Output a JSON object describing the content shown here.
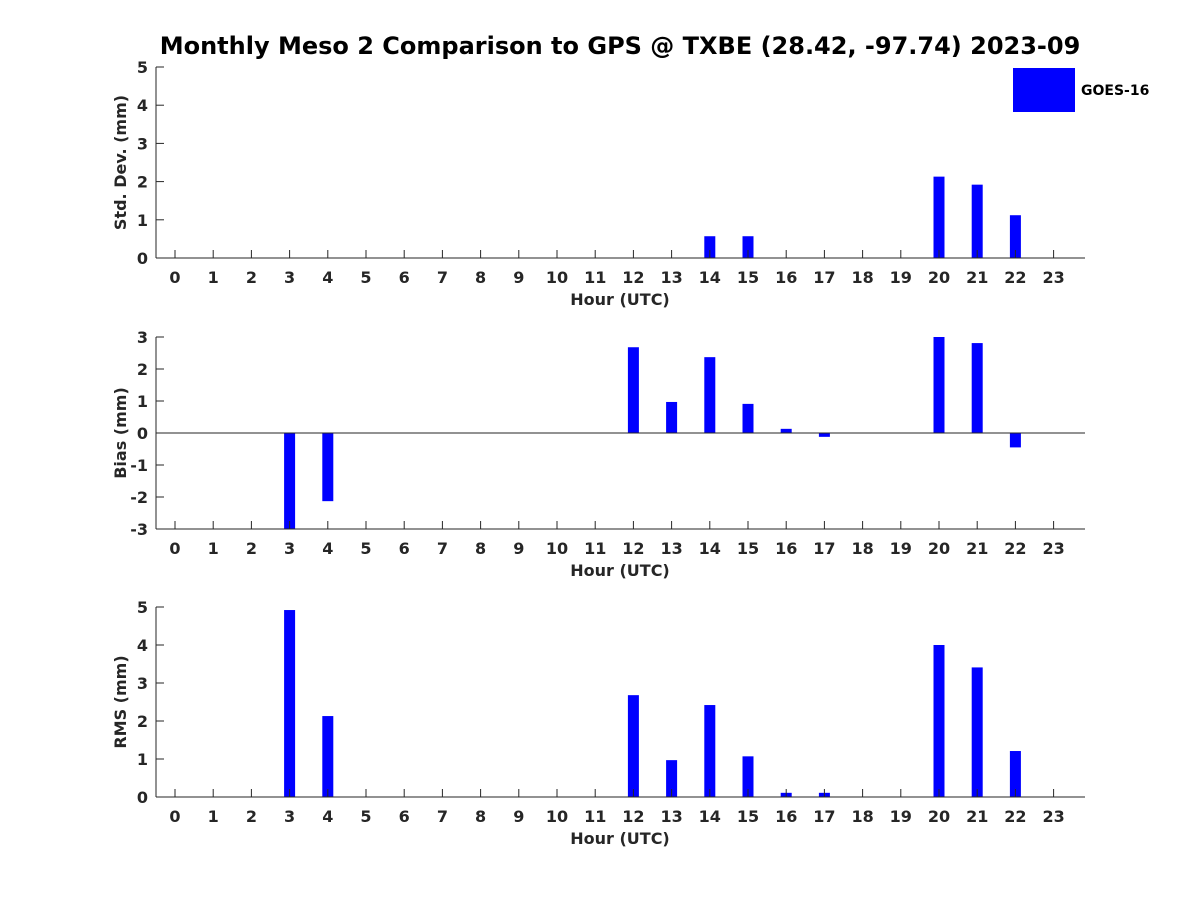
{
  "title": "Monthly Meso 2 Comparison to GPS @ TXBE (28.42, -97.74) 2023-09",
  "legend": {
    "label": "GOES-16",
    "color": "#0000ff"
  },
  "chart_data": [
    {
      "type": "bar",
      "xlabel": "Hour (UTC)",
      "ylabel": "Std. Dev. (mm)",
      "ylim": [
        0,
        5
      ],
      "yticks": [
        0,
        1,
        2,
        3,
        4,
        5
      ],
      "xticks": [
        0,
        1,
        2,
        3,
        4,
        5,
        6,
        7,
        8,
        9,
        10,
        11,
        12,
        13,
        14,
        15,
        16,
        17,
        18,
        19,
        20,
        21,
        22,
        23
      ],
      "series": [
        {
          "name": "GOES-16",
          "color": "#0000ff",
          "x": [
            14,
            15,
            20,
            21,
            22
          ],
          "values": [
            0.57,
            0.57,
            2.13,
            1.92,
            1.12
          ]
        }
      ]
    },
    {
      "type": "bar",
      "xlabel": "Hour (UTC)",
      "ylabel": "Bias (mm)",
      "ylim": [
        -3,
        3
      ],
      "yticks": [
        -3,
        -2,
        -1,
        0,
        1,
        2,
        3
      ],
      "xticks": [
        0,
        1,
        2,
        3,
        4,
        5,
        6,
        7,
        8,
        9,
        10,
        11,
        12,
        13,
        14,
        15,
        16,
        17,
        18,
        19,
        20,
        21,
        22,
        23
      ],
      "series": [
        {
          "name": "GOES-16",
          "color": "#0000ff",
          "x": [
            3,
            4,
            12,
            13,
            14,
            15,
            16,
            17,
            20,
            21,
            22
          ],
          "values": [
            -3.0,
            -2.13,
            2.68,
            0.97,
            2.37,
            0.91,
            0.13,
            -0.12,
            3.0,
            2.81,
            -0.45
          ]
        }
      ]
    },
    {
      "type": "bar",
      "xlabel": "Hour (UTC)",
      "ylabel": "RMS (mm)",
      "ylim": [
        0,
        5
      ],
      "yticks": [
        0,
        1,
        2,
        3,
        4,
        5
      ],
      "xticks": [
        0,
        1,
        2,
        3,
        4,
        5,
        6,
        7,
        8,
        9,
        10,
        11,
        12,
        13,
        14,
        15,
        16,
        17,
        18,
        19,
        20,
        21,
        22,
        23
      ],
      "series": [
        {
          "name": "GOES-16",
          "color": "#0000ff",
          "x": [
            3,
            4,
            12,
            13,
            14,
            15,
            16,
            17,
            20,
            21,
            22
          ],
          "values": [
            4.92,
            2.13,
            2.68,
            0.97,
            2.42,
            1.07,
            0.11,
            0.11,
            4.0,
            3.41,
            1.21
          ]
        }
      ]
    }
  ]
}
